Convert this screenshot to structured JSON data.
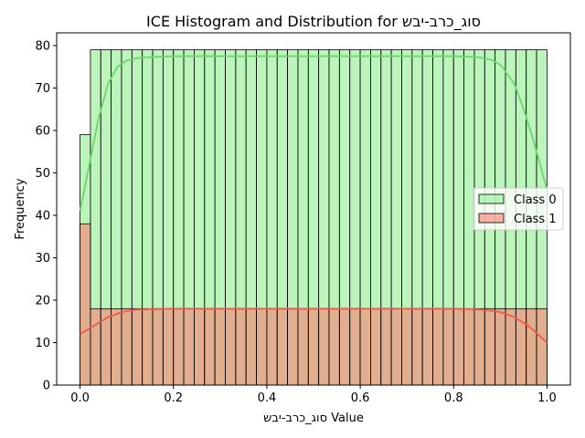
{
  "chart_data": {
    "type": "bar",
    "title": "ICE Histogram and Distribution for סוג_כרב-יבש",
    "xlabel": "סוג_כרב-יבש Value",
    "ylabel": "Frequency",
    "xlim": [
      -0.05,
      1.05
    ],
    "ylim": [
      0,
      83
    ],
    "xticks": [
      0.0,
      0.2,
      0.4,
      0.6,
      0.8,
      1.0
    ],
    "xtick_labels": [
      "0.0",
      "0.2",
      "0.4",
      "0.6",
      "0.8",
      "1.0"
    ],
    "yticks": [
      0,
      10,
      20,
      30,
      40,
      50,
      60,
      70,
      80
    ],
    "ytick_labels": [
      "0",
      "10",
      "20",
      "30",
      "40",
      "50",
      "60",
      "70",
      "80"
    ],
    "grid": false,
    "legend_position": "center-right",
    "bins": {
      "start": 0.0,
      "width": 0.02222,
      "count": 45
    },
    "series": [
      {
        "name": "Class 0",
        "color": "#90ee90",
        "first_bin": 59,
        "other_bins": 79,
        "kde": [
          [
            0.0,
            41
          ],
          [
            0.02,
            52
          ],
          [
            0.04,
            63
          ],
          [
            0.06,
            71
          ],
          [
            0.08,
            75
          ],
          [
            0.1,
            76.5
          ],
          [
            0.13,
            77.2
          ],
          [
            0.2,
            77.5
          ],
          [
            0.4,
            77.5
          ],
          [
            0.6,
            77.5
          ],
          [
            0.8,
            77.5
          ],
          [
            0.85,
            77.3
          ],
          [
            0.88,
            76.7
          ],
          [
            0.9,
            75.5
          ],
          [
            0.93,
            71
          ],
          [
            0.95,
            65
          ],
          [
            0.97,
            58
          ],
          [
            0.99,
            50
          ],
          [
            1.0,
            46
          ]
        ]
      },
      {
        "name": "Class 1",
        "color": "#fa8072",
        "first_bin": 38,
        "other_bins": 18,
        "kde": [
          [
            0.0,
            12
          ],
          [
            0.03,
            14
          ],
          [
            0.06,
            16
          ],
          [
            0.09,
            17.2
          ],
          [
            0.12,
            17.8
          ],
          [
            0.2,
            18
          ],
          [
            0.4,
            18
          ],
          [
            0.6,
            18
          ],
          [
            0.8,
            18
          ],
          [
            0.86,
            17.8
          ],
          [
            0.9,
            17.2
          ],
          [
            0.93,
            16
          ],
          [
            0.96,
            14
          ],
          [
            0.99,
            11
          ],
          [
            1.0,
            10
          ]
        ]
      }
    ]
  }
}
